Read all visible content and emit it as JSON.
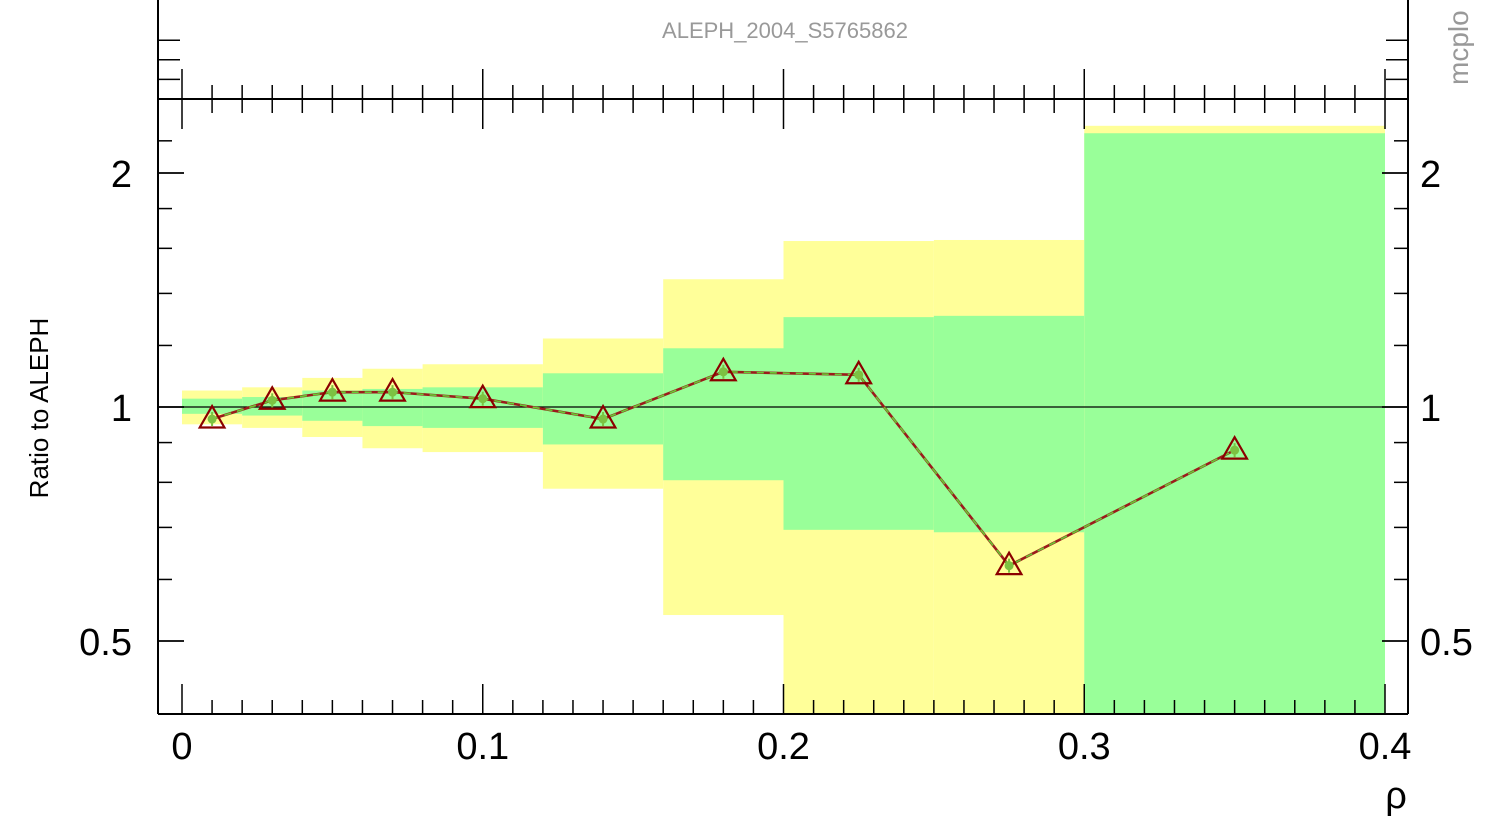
{
  "chart_data": {
    "type": "line",
    "title": "ALEPH_2004_S5765862",
    "xlabel": "ρ",
    "ylabel": "Ratio to ALEPH",
    "side_label": "mcplo",
    "y_scale": "log",
    "xlim": [
      0,
      0.4
    ],
    "ylim": [
      0.37,
      2.3
    ],
    "x_ticks": [
      {
        "value": 0,
        "label": "0"
      },
      {
        "value": 0.1,
        "label": "0.1"
      },
      {
        "value": 0.2,
        "label": "0.2"
      },
      {
        "value": 0.3,
        "label": "0.3"
      },
      {
        "value": 0.4,
        "label": "0.4"
      }
    ],
    "y_ticks": [
      {
        "value": 0.5,
        "label": "0.5"
      },
      {
        "value": 1,
        "label": "1"
      },
      {
        "value": 2,
        "label": "2"
      }
    ],
    "reference_line": 1,
    "bands": [
      {
        "x0": 0.0,
        "x1": 0.02,
        "green": [
          0.98,
          1.025
        ],
        "yellow": [
          0.95,
          1.05
        ]
      },
      {
        "x0": 0.02,
        "x1": 0.04,
        "green": [
          0.975,
          1.03
        ],
        "yellow": [
          0.94,
          1.06
        ]
      },
      {
        "x0": 0.04,
        "x1": 0.06,
        "green": [
          0.96,
          1.05
        ],
        "yellow": [
          0.915,
          1.09
        ]
      },
      {
        "x0": 0.06,
        "x1": 0.08,
        "green": [
          0.945,
          1.055
        ],
        "yellow": [
          0.885,
          1.12
        ]
      },
      {
        "x0": 0.08,
        "x1": 0.12,
        "green": [
          0.94,
          1.06
        ],
        "yellow": [
          0.875,
          1.135
        ]
      },
      {
        "x0": 0.12,
        "x1": 0.16,
        "green": [
          0.895,
          1.105
        ],
        "yellow": [
          0.785,
          1.225
        ]
      },
      {
        "x0": 0.16,
        "x1": 0.2,
        "green": [
          0.805,
          1.19
        ],
        "yellow": [
          0.54,
          1.46
        ]
      },
      {
        "x0": 0.2,
        "x1": 0.25,
        "green": [
          0.695,
          1.305
        ],
        "yellow": [
          0.37,
          1.635
        ]
      },
      {
        "x0": 0.25,
        "x1": 0.3,
        "green": [
          0.69,
          1.31
        ],
        "yellow": [
          0.37,
          1.64
        ]
      },
      {
        "x0": 0.3,
        "x1": 0.4,
        "green": [
          0.37,
          2.25
        ],
        "yellow": [
          0.37,
          2.3
        ]
      }
    ],
    "series": [
      {
        "x": [
          0.01,
          0.03,
          0.05,
          0.07,
          0.1,
          0.14,
          0.18,
          0.225,
          0.275,
          0.35
        ],
        "values": [
          0.965,
          1.02,
          1.045,
          1.045,
          1.025,
          0.965,
          1.11,
          1.1,
          0.625,
          0.88
        ]
      }
    ],
    "colors": {
      "yellow_band": "#ffff99",
      "green_band": "#99ff99",
      "line_red": "#9b1b1b",
      "line_green": "#66cc33",
      "marker_red": "#8b0000",
      "marker_green": "#7cc242"
    }
  }
}
